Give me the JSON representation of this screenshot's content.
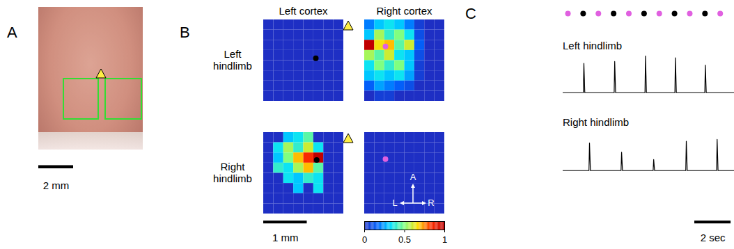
{
  "chart_data": [
    {
      "type": "image",
      "title": "A",
      "xlim": [
        0,
        6
      ],
      "scale_bar": {
        "length": 2,
        "label": "2 mm"
      }
    },
    {
      "type": "heatmap",
      "title": "B",
      "columns": [
        "Left cortex",
        "Right cortex"
      ],
      "rows": [
        "Left hindlimb",
        "Right hindlimb"
      ],
      "cell_mm": 0.23,
      "cells": [
        [
          [
            [
              0,
              0,
              0,
              0,
              0,
              0,
              0,
              0
            ],
            [
              0,
              0,
              0,
              0,
              0,
              0,
              0,
              0
            ],
            [
              0,
              0,
              0,
              0,
              0,
              0,
              0,
              0
            ],
            [
              0,
              0,
              0,
              0,
              0,
              0,
              0,
              0
            ],
            [
              0,
              0,
              0,
              0,
              0,
              0,
              0,
              0
            ],
            [
              0,
              0,
              0,
              0,
              0,
              0,
              0,
              0
            ],
            [
              0,
              0,
              0,
              0,
              0,
              0,
              0,
              0
            ],
            [
              0,
              0,
              0,
              0,
              0,
              0,
              0,
              0
            ]
          ],
          [
            [
              0.2,
              0.3,
              0.35,
              0.3,
              0.2,
              0.05,
              0,
              0
            ],
            [
              0.3,
              0.55,
              0.4,
              0.5,
              0.35,
              0.1,
              0,
              0
            ],
            [
              1.0,
              0.65,
              0.7,
              0.45,
              0.6,
              0.15,
              0,
              0
            ],
            [
              0.55,
              0.45,
              0.6,
              0.35,
              0.3,
              0.1,
              0,
              0
            ],
            [
              0.35,
              0.5,
              0.4,
              0.5,
              0.3,
              0.05,
              0,
              0
            ],
            [
              0.3,
              0.35,
              0.3,
              0.35,
              0.25,
              0.05,
              0,
              0
            ],
            [
              0.15,
              0.25,
              0.2,
              0.15,
              0.1,
              0,
              0,
              0
            ],
            [
              0,
              0.05,
              0.05,
              0,
              0,
              0,
              0,
              0
            ]
          ]
        ],
        [
          [
            [
              0,
              0,
              0.3,
              0.35,
              0.45,
              0,
              0,
              0
            ],
            [
              0,
              0.35,
              0.55,
              0.4,
              0.6,
              0.35,
              0,
              0
            ],
            [
              0,
              0.3,
              0.5,
              0.7,
              0.85,
              1.0,
              0,
              0
            ],
            [
              0,
              0.4,
              0.35,
              0.55,
              0.7,
              0.45,
              0,
              0
            ],
            [
              0,
              0,
              0.35,
              0.3,
              0.4,
              0.35,
              0,
              0
            ],
            [
              0,
              0,
              0,
              0.3,
              0,
              0.35,
              0,
              0
            ],
            [
              0,
              0,
              0,
              0,
              0,
              0,
              0,
              0
            ],
            [
              0,
              0,
              0,
              0,
              0,
              0,
              0,
              0
            ]
          ],
          [
            [
              0,
              0,
              0,
              0,
              0,
              0,
              0,
              0
            ],
            [
              0,
              0,
              0,
              0,
              0,
              0,
              0,
              0
            ],
            [
              0,
              0,
              0,
              0,
              0,
              0,
              0,
              0
            ],
            [
              0,
              0,
              0,
              0,
              0,
              0,
              0,
              0
            ],
            [
              0,
              0,
              0,
              0,
              0,
              0,
              0,
              0
            ],
            [
              0,
              0,
              0,
              0,
              0,
              0,
              0,
              0
            ],
            [
              0,
              0,
              0,
              0,
              0,
              0,
              0,
              0
            ],
            [
              0,
              0,
              0,
              0,
              0,
              0,
              0,
              0
            ]
          ]
        ]
      ],
      "sites": [
        [
          {
            "x": 1.2,
            "y": 0.87,
            "color": "#000000"
          },
          {
            "x": 0.48,
            "y": 0.6,
            "color": "#e060e0"
          }
        ],
        [
          {
            "x": 1.22,
            "y": 0.62,
            "color": "#000000"
          },
          {
            "x": 0.48,
            "y": 0.6,
            "color": "#e060e0"
          }
        ]
      ],
      "colorbar": {
        "range": [
          0,
          1
        ],
        "ticks": [
          0,
          0.5,
          1
        ]
      },
      "scale_bar": {
        "length": 1,
        "label": "1 mm"
      },
      "compass": {
        "up": "A",
        "left": "L",
        "right": "R"
      }
    },
    {
      "type": "line",
      "title": "C",
      "xlim": [
        0,
        9.45
      ],
      "ylim": [
        -0.1,
        1
      ],
      "tick_labels": false,
      "stimuli": {
        "x": [
          0.27,
          1.11,
          1.95,
          2.79,
          3.63,
          4.47,
          5.31,
          6.15,
          6.99,
          7.83,
          8.67
        ],
        "colors": [
          "#e060e0",
          "#000000",
          "#e060e0",
          "#000000",
          "#e060e0",
          "#000000",
          "#e060e0",
          "#000000",
          "#e060e0",
          "#000000",
          "#e060e0"
        ]
      },
      "series": [
        {
          "name": "Left hindlimb",
          "color": "#000000",
          "x": [
            1.15,
            2.85,
            4.55,
            6.2,
            7.85
          ],
          "values": [
            0.8,
            0.85,
            1.0,
            0.95,
            0.75
          ]
        },
        {
          "name": "Right hindlimb",
          "color": "#000000",
          "x": [
            1.46,
            3.23,
            5.0,
            6.8,
            8.5
          ],
          "values": [
            0.75,
            0.5,
            0.3,
            0.8,
            0.85
          ]
        }
      ],
      "scale_bar": {
        "length": 2,
        "label": "2 sec"
      }
    }
  ]
}
